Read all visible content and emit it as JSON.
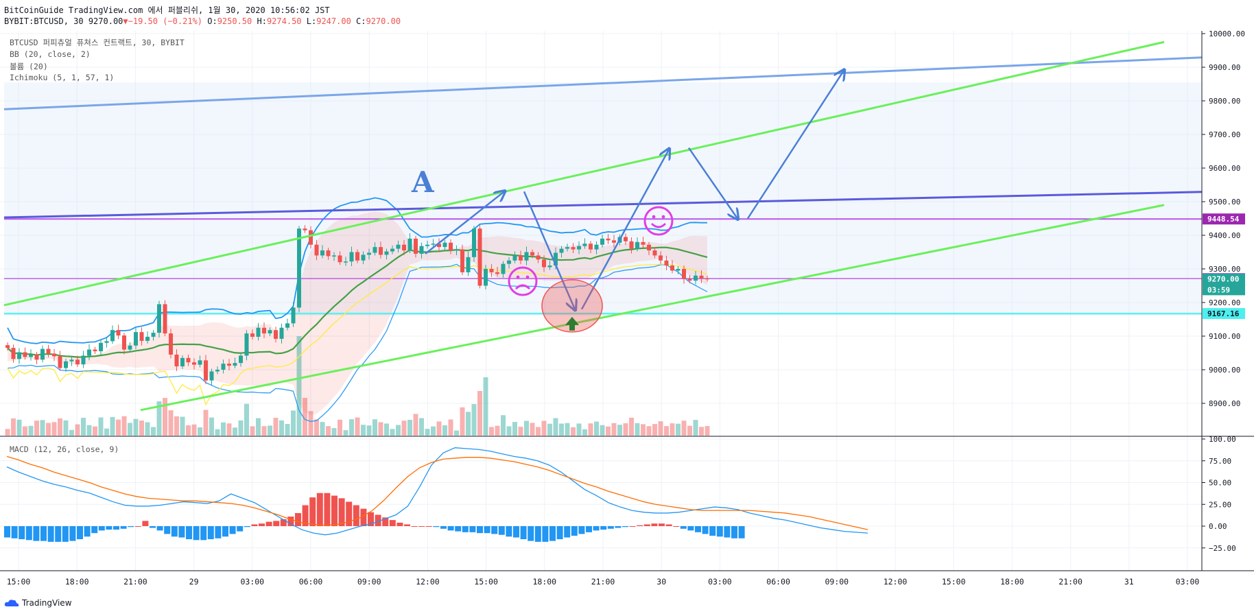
{
  "header": {
    "line1": "BitCoinGuide TradingView.com 에서 퍼블리쉬, 1월 30, 2020 10:56:02 JST",
    "symbol": "BYBIT:BTCUSD, 30",
    "last": "9270.00",
    "change": "▼−19.50 (−0.21%)",
    "o_label": "O:",
    "o": "9250.50",
    "h_label": "H:",
    "h": "9274.50",
    "l_label": "L:",
    "l": "9247.00",
    "c_label": "C:",
    "c": "9270.00"
  },
  "overlays": {
    "title": "BTCUSD 퍼피츄얼 퓨쳐스 컨트랙트, 30, BYBIT",
    "bb": "BB (20, close, 2)",
    "volume": "볼륨 (20)",
    "ichimoku": "Ichimoku (5, 1, 57, 1)",
    "macd": "MACD (12, 26, close, 9)"
  },
  "annotation_letter": "A",
  "footer_brand": "TradingView",
  "colors": {
    "up": "#26a69a",
    "down": "#ef5350",
    "bb": "#2196f3",
    "bb_mid": "#43a047",
    "ichimoku": "#ffeb3b",
    "cloud": "rgba(239,83,80,0.13)",
    "channel": "#69f05a",
    "upper_blue": "#7aa6e8",
    "dark_blue": "#5a5adc",
    "purple": "#b855e6",
    "cyan": "#5ef0ef",
    "arrow": "#4a7fd6",
    "smiley": "#e23ee5"
  },
  "chart_data": [
    {
      "type": "candlestick",
      "y_ticks": [
        "10000.00",
        "9900.00",
        "9800.00",
        "9700.00",
        "9600.00",
        "9500.00",
        "9400.00",
        "9300.00",
        "9200.00",
        "9100.00",
        "9000.00",
        "8900.00"
      ],
      "ylim": [
        8880,
        10010
      ],
      "x_ticks": [
        "15:00",
        "18:00",
        "21:00",
        "29",
        "03:00",
        "06:00",
        "09:00",
        "12:00",
        "15:00",
        "18:00",
        "21:00",
        "30",
        "03:00",
        "06:00",
        "09:00",
        "12:00",
        "15:00",
        "18:00",
        "21:00",
        "31",
        "03:00"
      ],
      "price_labels": [
        {
          "text": "9448.54",
          "value": 9448.54,
          "color": "#9c27b0"
        },
        {
          "text": "9271.27",
          "value": 9271.27,
          "color": "#e040fb"
        },
        {
          "text": "9270.00",
          "value": 9270.0,
          "color": "#26a69a"
        },
        {
          "text": "03:59",
          "value": 9238,
          "color": "#26a69a"
        },
        {
          "text": "9167.16",
          "value": 9167.16,
          "color": "#4cf0ef"
        }
      ],
      "horizontal_lines": [
        9448.54,
        9271.27,
        9167.16
      ],
      "series": [
        {
          "name": "close",
          "values": [
            9065,
            9032,
            9052,
            9038,
            9045,
            9030,
            9062,
            9048,
            9040,
            9005,
            9025,
            9030,
            9016,
            9042,
            9060,
            9055,
            9080,
            9085,
            9118,
            9102,
            9060,
            9072,
            9112,
            9086,
            9098,
            9110,
            9195,
            9108,
            9045,
            9010,
            9035,
            9022,
            9015,
            9028,
            8968,
            8995,
            9000,
            9018,
            9012,
            9020,
            9042,
            9108,
            9098,
            9125,
            9108,
            9118,
            9092,
            9125,
            9138,
            9185,
            9420,
            9415,
            9372,
            9340,
            9355,
            9338,
            9340,
            9320,
            9322,
            9350,
            9325,
            9342,
            9348,
            9365,
            9342,
            9352,
            9360,
            9372,
            9355,
            9390,
            9345,
            9368,
            9372,
            9375,
            9365,
            9378,
            9355,
            9358,
            9290,
            9335,
            9420,
            9250,
            9300,
            9290,
            9285,
            9315,
            9325,
            9340,
            9325,
            9350,
            9340,
            9328,
            9305,
            9310,
            9348,
            9360,
            9365,
            9358,
            9368,
            9375,
            9358,
            9372,
            9390,
            9385,
            9378,
            9395,
            9382,
            9360,
            9380,
            9372,
            9355,
            9340,
            9325,
            9310,
            9295,
            9300,
            9270,
            9265,
            9280,
            9272,
            9270
          ]
        }
      ]
    },
    {
      "type": "bar",
      "title": "MACD (12, 26, close, 9)",
      "y_ticks": [
        "100.00",
        "75.00",
        "50.00",
        "25.00",
        "0.00",
        "−25.00"
      ],
      "ylim": [
        -33,
        100
      ],
      "series": [
        {
          "name": "histogram",
          "values": [
            -13,
            -14,
            -15,
            -16,
            -17,
            -17,
            -18,
            -18,
            -18,
            -17,
            -15,
            -12,
            -8,
            -5,
            -4,
            -4,
            -3,
            -1,
            0,
            6,
            -2,
            -5,
            -9,
            -12,
            -13,
            -15,
            -16,
            -16,
            -15,
            -14,
            -12,
            -9,
            -6,
            -1,
            2,
            3,
            5,
            6,
            8,
            11,
            15,
            24,
            33,
            38,
            38,
            35,
            32,
            28,
            24,
            20,
            16,
            13,
            10,
            7,
            4,
            2,
            0,
            0,
            0,
            -1,
            -3,
            -5,
            -6,
            -7,
            -7,
            -8,
            -8,
            -9,
            -10,
            -12,
            -13,
            -15,
            -17,
            -18,
            -18,
            -17,
            -15,
            -13,
            -11,
            -9,
            -7,
            -5,
            -4,
            -3,
            -2,
            -1,
            0,
            1,
            2,
            3,
            3,
            2,
            0,
            -3,
            -5,
            -7,
            -9,
            -11,
            -12,
            -13,
            -14,
            -14
          ]
        },
        {
          "name": "macd",
          "values": [
            68,
            62,
            57,
            52,
            48,
            45,
            41,
            38,
            33,
            28,
            24,
            23,
            23,
            24,
            26,
            28,
            27,
            26,
            29,
            37,
            32,
            27,
            19,
            11,
            3,
            -4,
            -8,
            -10,
            -8,
            -4,
            0,
            3,
            8,
            13,
            23,
            45,
            70,
            84,
            90,
            89,
            88,
            86,
            83,
            80,
            78,
            75,
            70,
            62,
            52,
            42,
            35,
            27,
            22,
            18,
            16,
            15,
            15,
            16,
            18,
            20,
            22,
            21,
            19,
            15,
            12,
            9,
            7,
            4,
            1,
            -2,
            -4,
            -6,
            -7,
            -8
          ]
        },
        {
          "name": "signal",
          "values": [
            80,
            76,
            71,
            67,
            62,
            58,
            54,
            50,
            45,
            41,
            37,
            34,
            32,
            31,
            30,
            29,
            29,
            28,
            27,
            26,
            24,
            21,
            17,
            13,
            8,
            4,
            2,
            1,
            2,
            5,
            10,
            18,
            30,
            44,
            57,
            67,
            73,
            77,
            78,
            79,
            79,
            78,
            76,
            74,
            71,
            68,
            64,
            59,
            54,
            49,
            45,
            40,
            36,
            32,
            28,
            25,
            23,
            21,
            19,
            18,
            18,
            18,
            18,
            18,
            17,
            16,
            15,
            13,
            11,
            8,
            5,
            2,
            -1,
            -4
          ]
        }
      ]
    }
  ]
}
